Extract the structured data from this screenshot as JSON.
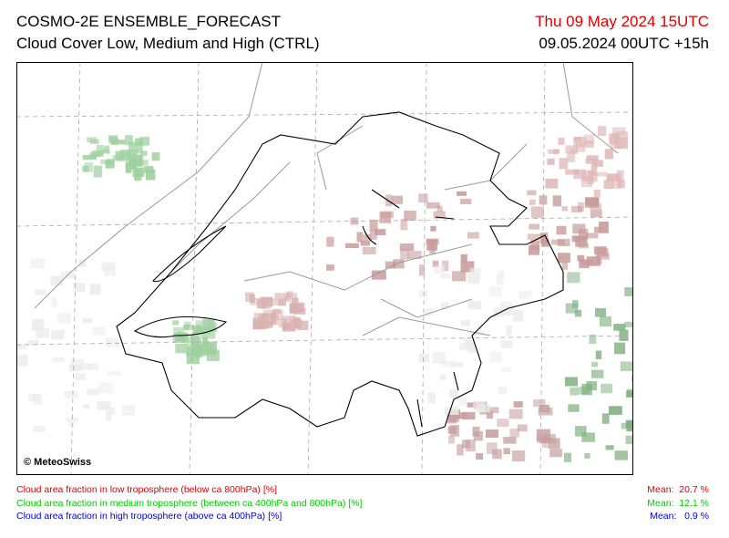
{
  "header": {
    "title": "COSMO-2E ENSEMBLE_FORECAST",
    "subtitle": "Cloud Cover Low, Medium and High (CTRL)",
    "valid_time": "Thu 09 May 2024 15UTC",
    "run_time": "09.05.2024 00UTC +15h"
  },
  "map": {
    "credit": "© MeteoSwiss"
  },
  "legend": {
    "items": [
      {
        "text": "Cloud area fraction in low troposphere (below ca 800hPa) [%]",
        "mean": "Mean:  20.7 %",
        "color": "#e00000"
      },
      {
        "text": "Cloud area fraction in medium troposphere (between ca 400hPa and 800hPa) [%]",
        "mean": "Mean:  12.1 %",
        "color": "#00cc00"
      },
      {
        "text": "Cloud area fraction in high troposphere (above ca 400hPa) [%]",
        "mean": "Mean:   0.9 %",
        "color": "#0000dd"
      }
    ]
  }
}
